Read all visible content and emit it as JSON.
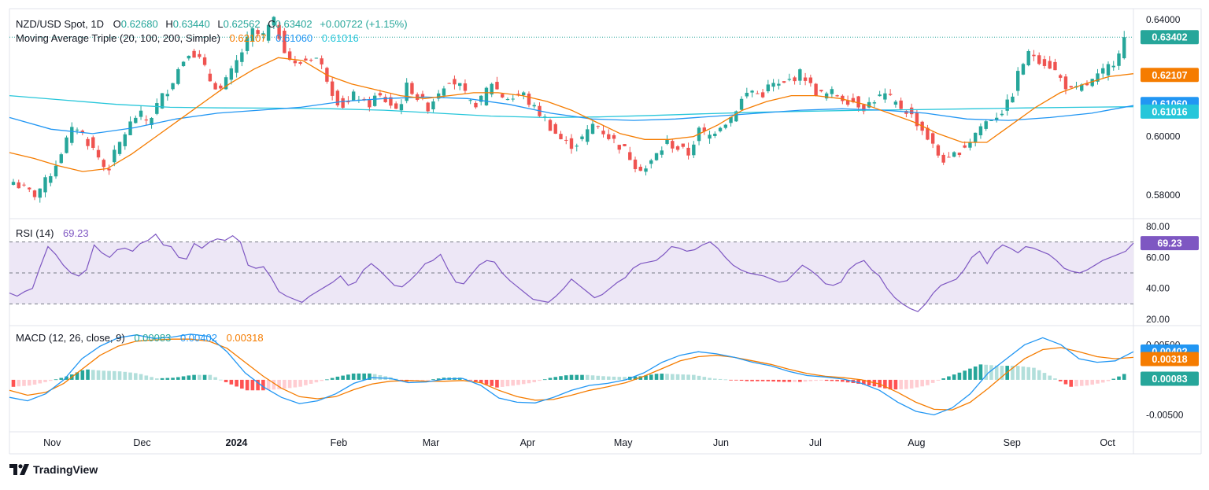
{
  "header": {
    "symbol": "NZD/USD Spot, 1D",
    "ohlc": [
      {
        "key": "O",
        "value": "0.62680"
      },
      {
        "key": "H",
        "value": "0.63440"
      },
      {
        "key": "L",
        "value": "0.62562"
      },
      {
        "key": "C",
        "value": "0.63402"
      }
    ],
    "change": "+0.00722 (+1.15%)",
    "ma_label": "Moving Average Triple (20, 100, 200, Simple)",
    "ma_values": [
      "0.62107",
      "0.61060",
      "0.61016"
    ],
    "rsi_label": "RSI (14)",
    "rsi_value": "69.23",
    "macd_label": "MACD (12, 26, close, 9)",
    "macd_values": [
      "0.00083",
      "0.00402",
      "0.00318"
    ]
  },
  "colors": {
    "up": "#26a69a",
    "down": "#ef5350",
    "ma20": "#f57c00",
    "ma100": "#2196f3",
    "ma200": "#26c6da",
    "rsi": "#7e57c2",
    "rsi_band": "#ede7f6",
    "macd": "#2196f3",
    "signal": "#f57c00",
    "hist_up_strong": "#26a69a",
    "hist_up_weak": "#b2dfdb",
    "hist_down_strong": "#ff5252",
    "hist_down_weak": "#ffcdd2"
  },
  "chart_data": [
    {
      "type": "candlestick",
      "name": "price",
      "price_axis_ticks": [
        "0.64000",
        "0.60000",
        "0.58000"
      ],
      "tick_values": [
        0.64,
        0.6,
        0.58
      ],
      "ylim": [
        0.5735,
        0.6435
      ],
      "last_price": 0.63402,
      "last_price_label": "0.63402",
      "axis_badges": [
        {
          "label": "0.63402",
          "value": 0.63402,
          "color": "#26a69a"
        },
        {
          "label": "0.62107",
          "value": 0.62107,
          "color": "#f57c00"
        },
        {
          "label": "0.61060",
          "value": 0.6106,
          "color": "#2196f3"
        },
        {
          "label": "0.61016",
          "value": 0.61016,
          "color": "#26c6da"
        }
      ],
      "price_path": [
        0.5845,
        0.582,
        0.58,
        0.584,
        0.59,
        0.598,
        0.604,
        0.599,
        0.594,
        0.588,
        0.596,
        0.603,
        0.608,
        0.605,
        0.612,
        0.617,
        0.624,
        0.63,
        0.626,
        0.619,
        0.616,
        0.622,
        0.629,
        0.636,
        0.634,
        0.64,
        0.631,
        0.624,
        0.626,
        0.628,
        0.622,
        0.613,
        0.61,
        0.615,
        0.61,
        0.614,
        0.612,
        0.609,
        0.618,
        0.613,
        0.61,
        0.616,
        0.62,
        0.617,
        0.611,
        0.612,
        0.619,
        0.614,
        0.613,
        0.615,
        0.61,
        0.607,
        0.602,
        0.598,
        0.597,
        0.6,
        0.605,
        0.601,
        0.598,
        0.595,
        0.59,
        0.589,
        0.594,
        0.598,
        0.596,
        0.594,
        0.602,
        0.6,
        0.604,
        0.606,
        0.612,
        0.616,
        0.614,
        0.618,
        0.617,
        0.62,
        0.622,
        0.616,
        0.614,
        0.615,
        0.613,
        0.612,
        0.61,
        0.613,
        0.614,
        0.611,
        0.609,
        0.605,
        0.6,
        0.594,
        0.591,
        0.595,
        0.598,
        0.603,
        0.606,
        0.608,
        0.612,
        0.624,
        0.629,
        0.626,
        0.624,
        0.619,
        0.615,
        0.617,
        0.619,
        0.622,
        0.626,
        0.634
      ],
      "ma20_path": [
        0.5945,
        0.5925,
        0.59,
        0.588,
        0.589,
        0.594,
        0.6,
        0.606,
        0.612,
        0.618,
        0.623,
        0.627,
        0.626,
        0.621,
        0.618,
        0.616,
        0.614,
        0.613,
        0.614,
        0.615,
        0.615,
        0.614,
        0.612,
        0.609,
        0.605,
        0.601,
        0.599,
        0.599,
        0.6,
        0.604,
        0.609,
        0.612,
        0.614,
        0.614,
        0.613,
        0.611,
        0.608,
        0.605,
        0.601,
        0.598,
        0.598,
        0.604,
        0.61,
        0.615,
        0.618,
        0.6205,
        0.6215
      ],
      "ma100_path": [
        0.6065,
        0.6025,
        0.601,
        0.603,
        0.606,
        0.608,
        0.609,
        0.61,
        0.612,
        0.613,
        0.6135,
        0.613,
        0.611,
        0.608,
        0.606,
        0.6055,
        0.606,
        0.607,
        0.608,
        0.609,
        0.6095,
        0.609,
        0.608,
        0.606,
        0.6055,
        0.6065,
        0.608,
        0.6106
      ],
      "ma200_path": [
        0.614,
        0.6125,
        0.611,
        0.61,
        0.6098,
        0.6097,
        0.6095,
        0.609,
        0.608,
        0.607,
        0.6065,
        0.6067,
        0.6072,
        0.6078,
        0.6083,
        0.6087,
        0.609,
        0.6092,
        0.6095,
        0.6098,
        0.61,
        0.6102
      ]
    },
    {
      "type": "line",
      "name": "RSI (14)",
      "axis_ticks": [
        "80.00",
        "60.00",
        "40.00",
        "20.00"
      ],
      "tick_values": [
        80,
        60,
        40,
        20
      ],
      "ylim": [
        17,
        83
      ],
      "band": [
        30,
        70
      ],
      "midline": 50,
      "last_value": 69.23,
      "last_label": "69.23",
      "values": [
        37,
        35,
        38,
        40,
        54,
        67,
        62,
        55,
        50,
        48,
        52,
        68,
        63,
        60,
        65,
        66,
        64,
        69,
        71,
        75,
        68,
        67,
        60,
        59,
        69,
        66,
        70,
        72,
        71,
        74,
        70,
        55,
        53,
        54,
        47,
        38,
        35,
        33,
        31,
        35,
        38,
        41,
        44,
        48,
        42,
        44,
        52,
        56,
        52,
        47,
        42,
        41,
        45,
        50,
        56,
        58,
        62,
        52,
        44,
        43,
        49,
        55,
        58,
        57,
        50,
        45,
        41,
        37,
        33,
        32,
        31,
        35,
        40,
        46,
        42,
        38,
        34,
        36,
        40,
        44,
        47,
        53,
        56,
        57,
        58,
        62,
        67,
        66,
        64,
        65,
        68,
        70,
        66,
        60,
        55,
        52,
        50,
        49,
        48,
        46,
        44,
        45,
        50,
        55,
        52,
        48,
        43,
        42,
        44,
        52,
        56,
        58,
        52,
        48,
        40,
        34,
        30,
        27,
        25,
        30,
        37,
        42,
        44,
        46,
        52,
        60,
        64,
        56,
        64,
        68,
        66,
        63,
        67,
        66,
        64,
        62,
        58,
        53,
        51,
        50,
        52,
        55,
        58,
        60,
        62,
        64,
        69.23
      ]
    },
    {
      "type": "macd",
      "name": "MACD (12, 26, close, 9)",
      "axis_ticks": [
        "0.00500",
        "-0.00500"
      ],
      "tick_values": [
        0.005,
        -0.005
      ],
      "ylim": [
        -0.0073,
        0.0075
      ],
      "macd_last_label": "0.00402",
      "signal_last_label": "0.00318",
      "hist_last_label": "0.00083",
      "axis_badges": [
        {
          "label": "0.00402",
          "value": 0.00402,
          "color": "#2196f3"
        },
        {
          "label": "0.00318",
          "value": 0.00318,
          "color": "#f57c00"
        },
        {
          "label": "0.00083",
          "value": 0.00083,
          "color": "#26a69a"
        }
      ],
      "macd_path": [
        -0.0025,
        -0.003,
        -0.002,
        0.0,
        0.003,
        0.0048,
        0.006,
        0.0064,
        0.0059,
        0.0061,
        0.0065,
        0.0062,
        0.004,
        0.001,
        -0.001,
        -0.0025,
        -0.0034,
        -0.003,
        -0.002,
        -0.0005,
        0.0003,
        0.0002,
        -0.0004,
        -0.0003,
        0.0001,
        0.0002,
        -0.0008,
        -0.0026,
        -0.0032,
        -0.0033,
        -0.0025,
        -0.0015,
        -0.0008,
        -0.0005,
        0.0,
        0.001,
        0.0025,
        0.0035,
        0.004,
        0.0037,
        0.0032,
        0.0025,
        0.002,
        0.0012,
        0.0006,
        0.0004,
        0.0001,
        -0.0005,
        -0.0015,
        -0.0032,
        -0.0045,
        -0.005,
        -0.004,
        -0.002,
        0.001,
        0.003,
        0.005,
        0.006,
        0.005,
        0.003,
        0.0025,
        0.0027,
        0.004
      ],
      "signal_path": [
        -0.0015,
        -0.0022,
        -0.0018,
        -0.0005,
        0.0015,
        0.0035,
        0.0048,
        0.0055,
        0.0057,
        0.0058,
        0.0058,
        0.0055,
        0.0045,
        0.0025,
        0.0005,
        -0.0012,
        -0.0024,
        -0.0027,
        -0.0024,
        -0.0014,
        -0.0006,
        -0.0002,
        -0.0001,
        -0.0002,
        -0.0002,
        -0.0001,
        -0.0004,
        -0.0015,
        -0.0024,
        -0.0029,
        -0.0028,
        -0.0022,
        -0.0015,
        -0.001,
        -0.0004,
        0.0005,
        0.0016,
        0.0027,
        0.0033,
        0.0035,
        0.0032,
        0.0027,
        0.0022,
        0.0015,
        0.0009,
        0.0005,
        0.0003,
        0.0,
        -0.0006,
        -0.0018,
        -0.0032,
        -0.0042,
        -0.0043,
        -0.0032,
        -0.0012,
        0.001,
        0.003,
        0.0043,
        0.0046,
        0.004,
        0.0033,
        0.003,
        0.0032
      ]
    }
  ],
  "x_axis": {
    "labels": [
      {
        "text": "Nov",
        "pos": 0.038,
        "bold": false
      },
      {
        "text": "Dec",
        "pos": 0.118,
        "bold": false
      },
      {
        "text": "2024",
        "pos": 0.202,
        "bold": true
      },
      {
        "text": "Feb",
        "pos": 0.293,
        "bold": false
      },
      {
        "text": "Mar",
        "pos": 0.375,
        "bold": false
      },
      {
        "text": "Apr",
        "pos": 0.461,
        "bold": false
      },
      {
        "text": "May",
        "pos": 0.546,
        "bold": false
      },
      {
        "text": "Jun",
        "pos": 0.633,
        "bold": false
      },
      {
        "text": "Jul",
        "pos": 0.717,
        "bold": false
      },
      {
        "text": "Aug",
        "pos": 0.807,
        "bold": false
      },
      {
        "text": "Sep",
        "pos": 0.892,
        "bold": false
      },
      {
        "text": "Oct",
        "pos": 0.977,
        "bold": false
      }
    ]
  },
  "footer": {
    "brand": "TradingView"
  }
}
